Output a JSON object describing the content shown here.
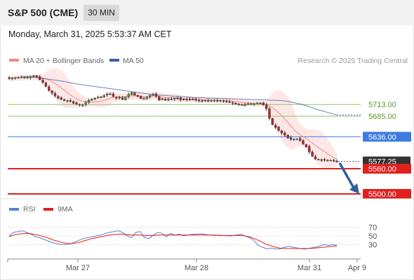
{
  "header": {
    "title": "S&P 500 (CME)",
    "timeframe": "30 MIN",
    "timestamp": "Monday, March 31, 2025 5:53:37 AM CET"
  },
  "legend": {
    "items": [
      {
        "label": "MA 20 + Bollinger Bands",
        "color": "#f28b82"
      },
      {
        "label": "MA 50",
        "color": "#3b5d9e"
      }
    ],
    "credit": "Research © 2025 Trading Central"
  },
  "rsi_legend": {
    "items": [
      {
        "label": "RSI",
        "color": "#5b7fd4"
      },
      {
        "label": "9MA",
        "color": "#e0211d"
      }
    ]
  },
  "chart_data": {
    "type": "candlestick",
    "instrument": "S&P 500 (CME)",
    "interval": "30 MIN",
    "price_range": [
      5490,
      5795
    ],
    "levels": [
      {
        "value": 5713.0,
        "label": "5713.00",
        "kind": "resistance",
        "color": "#8dc36b"
      },
      {
        "value": 5685.0,
        "label": "5685.00",
        "kind": "resistance",
        "color": "#8dc36b"
      },
      {
        "value": 5636.0,
        "label": "5636.00",
        "kind": "pivot",
        "color": "#3d7be0"
      },
      {
        "value": 5577.25,
        "label": "5577.25",
        "kind": "last",
        "color": "#222222"
      },
      {
        "value": 5560.0,
        "label": "5560.00",
        "kind": "support",
        "color": "#e0211d"
      },
      {
        "value": 5500.0,
        "label": "5500.00",
        "kind": "support",
        "color": "#e0211d"
      }
    ],
    "x_ticks": [
      "Mar 27",
      "Mar 28",
      "Mar 31",
      "Apr 9"
    ],
    "close": [
      5775,
      5776,
      5777,
      5777,
      5778,
      5778,
      5778,
      5780,
      5780,
      5779,
      5772,
      5765,
      5756,
      5746,
      5740,
      5733,
      5728,
      5725,
      5722,
      5722,
      5720,
      5716,
      5714,
      5712,
      5712,
      5717,
      5723,
      5726,
      5728,
      5730,
      5730,
      5734,
      5738,
      5737,
      5732,
      5728,
      5730,
      5725,
      5731,
      5737,
      5741,
      5735,
      5732,
      5727,
      5727,
      5731,
      5735,
      5737,
      5732,
      5723,
      5727,
      5723,
      5726,
      5726,
      5728,
      5728,
      5724,
      5725,
      5725,
      5725,
      5724,
      5723,
      5722,
      5722,
      5722,
      5722,
      5722,
      5723,
      5722,
      5722,
      5721,
      5720,
      5718,
      5716,
      5714,
      5712,
      5712,
      5713,
      5714,
      5715,
      5715,
      5717,
      5716,
      5712,
      5703,
      5680,
      5665,
      5658,
      5651,
      5645,
      5640,
      5633,
      5630,
      5630,
      5631,
      5627,
      5619,
      5612,
      5600,
      5590,
      5583,
      5582,
      5581,
      5580,
      5580,
      5580,
      5578,
      5577
    ],
    "ma50": [
      5780,
      5779,
      5778,
      5776,
      5774,
      5772,
      5770,
      5768,
      5765,
      5762,
      5760,
      5758,
      5756,
      5754,
      5752,
      5750,
      5748,
      5746,
      5744,
      5742,
      5740,
      5738,
      5736,
      5735,
      5734,
      5733,
      5732,
      5731,
      5730,
      5729,
      5729,
      5728,
      5728,
      5727,
      5727,
      5726,
      5726,
      5725,
      5725,
      5724,
      5724,
      5723,
      5723,
      5722,
      5720,
      5717,
      5714,
      5710,
      5705,
      5700,
      5696,
      5692,
      5688
    ],
    "rsi_scale": [
      0,
      100
    ],
    "rsi_ticks": [
      70,
      50,
      30
    ],
    "rsi": [
      50,
      58,
      60,
      62,
      58,
      54,
      48,
      46,
      42,
      38,
      34,
      32,
      30,
      30,
      32,
      36,
      40,
      44,
      46,
      48,
      50,
      52,
      56,
      58,
      60,
      62,
      58,
      50,
      46,
      58,
      60,
      46,
      44,
      52,
      58,
      56,
      48,
      56,
      52,
      54,
      50,
      52,
      54,
      54,
      55,
      53,
      52,
      51,
      52,
      51,
      50,
      50,
      52,
      54,
      50,
      46,
      40,
      28,
      24,
      20,
      22,
      20,
      20,
      24,
      26,
      24,
      22,
      20,
      20,
      22,
      24,
      26,
      30,
      28,
      30,
      28
    ],
    "rsi_ma9": [
      48,
      52,
      54,
      55,
      56,
      55,
      53,
      51,
      48,
      45,
      41,
      38,
      35,
      33,
      32,
      33,
      35,
      38,
      41,
      44,
      46,
      48,
      50,
      52,
      53,
      54,
      54,
      53,
      52,
      52,
      52,
      51,
      51,
      51,
      52,
      52,
      52,
      52,
      52,
      52,
      52,
      52,
      52,
      52,
      52,
      52,
      52,
      52,
      51,
      51,
      51,
      51,
      51,
      51,
      50,
      48,
      44,
      40,
      35,
      30,
      27,
      24,
      22,
      21,
      21,
      21,
      21,
      21,
      21,
      21,
      22,
      23,
      24,
      25,
      26,
      27
    ]
  }
}
